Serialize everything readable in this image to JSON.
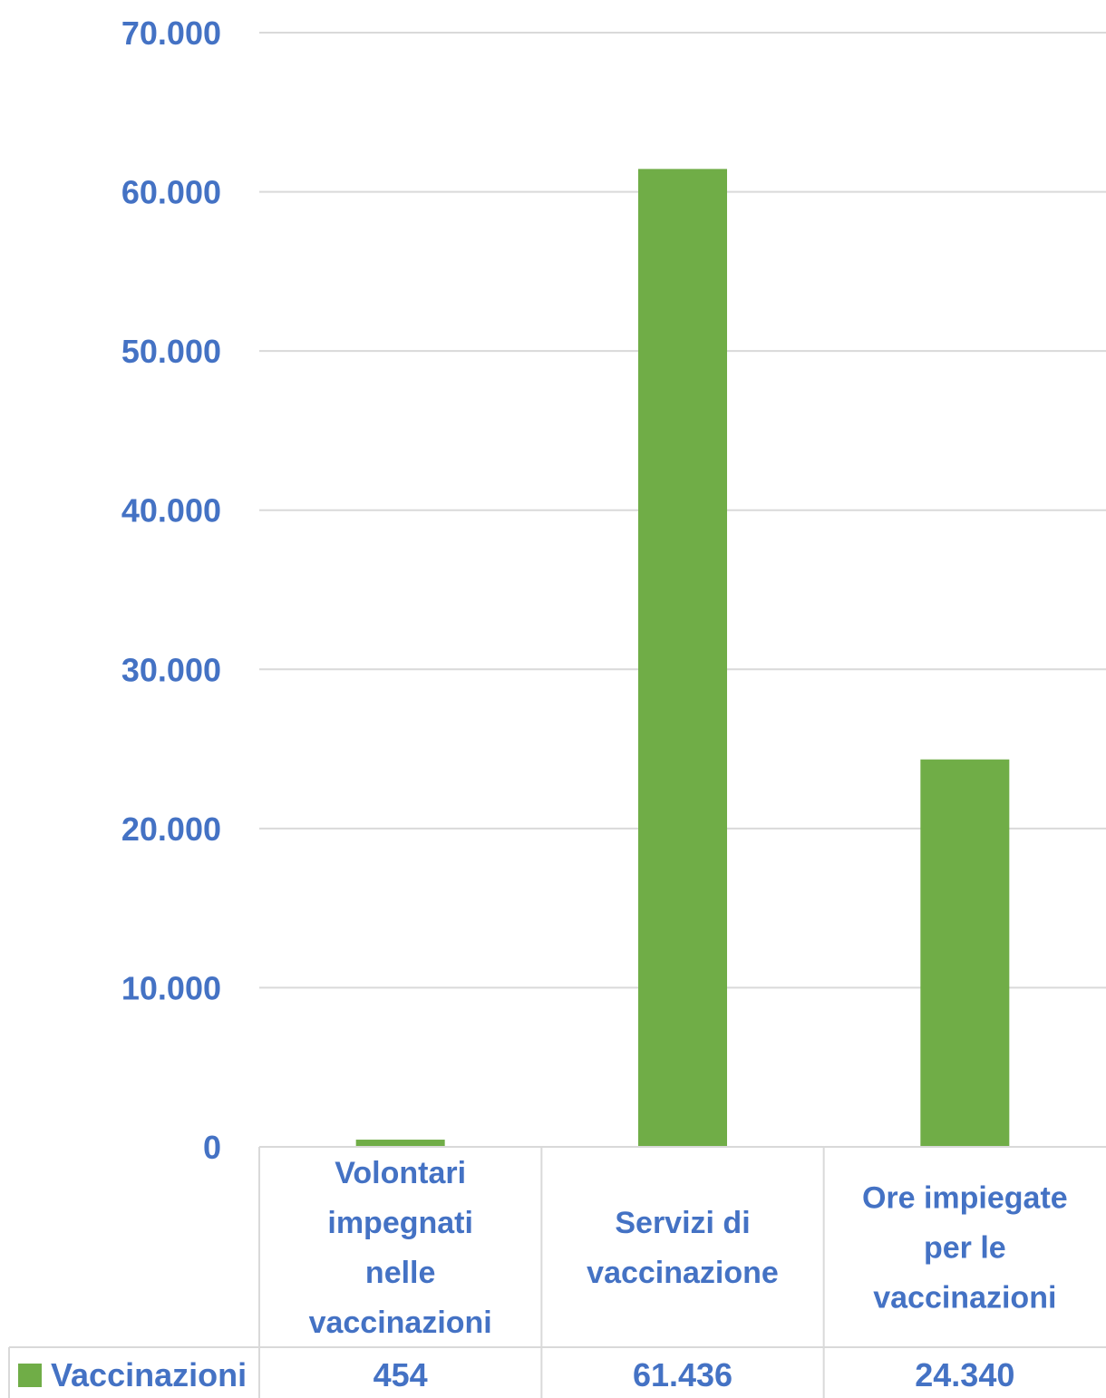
{
  "chart_data": {
    "type": "bar",
    "categories": [
      "Volontari impegnati nelle vaccinazioni",
      "Servizi di vaccinazione",
      "Ore impiegate per le vaccinazioni"
    ],
    "category_lines": [
      [
        "Volontari",
        "impegnati",
        "nelle",
        "vaccinazioni"
      ],
      [
        "Servizi di",
        "vaccinazione"
      ],
      [
        "Ore impiegate",
        "per le",
        "vaccinazioni"
      ]
    ],
    "series": [
      {
        "name": "Vaccinazioni",
        "values": [
          454,
          61436,
          24340
        ],
        "labels": [
          "454",
          "61.436",
          "24.340"
        ],
        "color": "#70AD47"
      }
    ],
    "y_ticks": [
      0,
      10000,
      20000,
      30000,
      40000,
      50000,
      60000,
      70000
    ],
    "y_tick_labels": [
      "0",
      "10.000",
      "20.000",
      "30.000",
      "40.000",
      "50.000",
      "60.000",
      "70.000"
    ],
    "ylim": [
      0,
      70000
    ],
    "grid": true,
    "legend": "data-table",
    "title": "",
    "xlabel": "",
    "ylabel": "",
    "colors": {
      "text": "#4472C4",
      "bar": "#70AD47",
      "grid": "#D9D9D9"
    }
  }
}
